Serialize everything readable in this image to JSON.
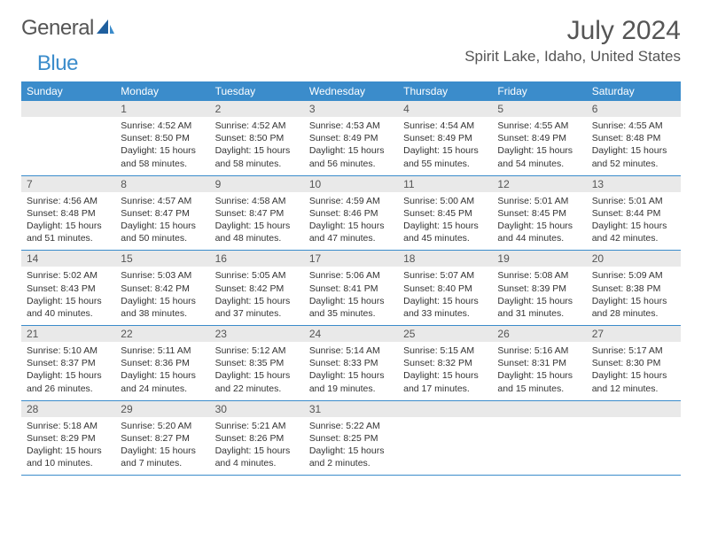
{
  "logo": {
    "text1": "General",
    "text2": "Blue"
  },
  "title": "July 2024",
  "location": "Spirit Lake, Idaho, United States",
  "colors": {
    "accent": "#3b8ccb",
    "day_bar_bg": "#e9e9e9",
    "text": "#333333",
    "header_text": "#555555",
    "background": "#ffffff"
  },
  "day_headers": [
    "Sunday",
    "Monday",
    "Tuesday",
    "Wednesday",
    "Thursday",
    "Friday",
    "Saturday"
  ],
  "weeks": [
    [
      {
        "n": "",
        "sr": "",
        "ss": "",
        "dl": ""
      },
      {
        "n": "1",
        "sr": "4:52 AM",
        "ss": "8:50 PM",
        "dl": "15 hours and 58 minutes."
      },
      {
        "n": "2",
        "sr": "4:52 AM",
        "ss": "8:50 PM",
        "dl": "15 hours and 58 minutes."
      },
      {
        "n": "3",
        "sr": "4:53 AM",
        "ss": "8:49 PM",
        "dl": "15 hours and 56 minutes."
      },
      {
        "n": "4",
        "sr": "4:54 AM",
        "ss": "8:49 PM",
        "dl": "15 hours and 55 minutes."
      },
      {
        "n": "5",
        "sr": "4:55 AM",
        "ss": "8:49 PM",
        "dl": "15 hours and 54 minutes."
      },
      {
        "n": "6",
        "sr": "4:55 AM",
        "ss": "8:48 PM",
        "dl": "15 hours and 52 minutes."
      }
    ],
    [
      {
        "n": "7",
        "sr": "4:56 AM",
        "ss": "8:48 PM",
        "dl": "15 hours and 51 minutes."
      },
      {
        "n": "8",
        "sr": "4:57 AM",
        "ss": "8:47 PM",
        "dl": "15 hours and 50 minutes."
      },
      {
        "n": "9",
        "sr": "4:58 AM",
        "ss": "8:47 PM",
        "dl": "15 hours and 48 minutes."
      },
      {
        "n": "10",
        "sr": "4:59 AM",
        "ss": "8:46 PM",
        "dl": "15 hours and 47 minutes."
      },
      {
        "n": "11",
        "sr": "5:00 AM",
        "ss": "8:45 PM",
        "dl": "15 hours and 45 minutes."
      },
      {
        "n": "12",
        "sr": "5:01 AM",
        "ss": "8:45 PM",
        "dl": "15 hours and 44 minutes."
      },
      {
        "n": "13",
        "sr": "5:01 AM",
        "ss": "8:44 PM",
        "dl": "15 hours and 42 minutes."
      }
    ],
    [
      {
        "n": "14",
        "sr": "5:02 AM",
        "ss": "8:43 PM",
        "dl": "15 hours and 40 minutes."
      },
      {
        "n": "15",
        "sr": "5:03 AM",
        "ss": "8:42 PM",
        "dl": "15 hours and 38 minutes."
      },
      {
        "n": "16",
        "sr": "5:05 AM",
        "ss": "8:42 PM",
        "dl": "15 hours and 37 minutes."
      },
      {
        "n": "17",
        "sr": "5:06 AM",
        "ss": "8:41 PM",
        "dl": "15 hours and 35 minutes."
      },
      {
        "n": "18",
        "sr": "5:07 AM",
        "ss": "8:40 PM",
        "dl": "15 hours and 33 minutes."
      },
      {
        "n": "19",
        "sr": "5:08 AM",
        "ss": "8:39 PM",
        "dl": "15 hours and 31 minutes."
      },
      {
        "n": "20",
        "sr": "5:09 AM",
        "ss": "8:38 PM",
        "dl": "15 hours and 28 minutes."
      }
    ],
    [
      {
        "n": "21",
        "sr": "5:10 AM",
        "ss": "8:37 PM",
        "dl": "15 hours and 26 minutes."
      },
      {
        "n": "22",
        "sr": "5:11 AM",
        "ss": "8:36 PM",
        "dl": "15 hours and 24 minutes."
      },
      {
        "n": "23",
        "sr": "5:12 AM",
        "ss": "8:35 PM",
        "dl": "15 hours and 22 minutes."
      },
      {
        "n": "24",
        "sr": "5:14 AM",
        "ss": "8:33 PM",
        "dl": "15 hours and 19 minutes."
      },
      {
        "n": "25",
        "sr": "5:15 AM",
        "ss": "8:32 PM",
        "dl": "15 hours and 17 minutes."
      },
      {
        "n": "26",
        "sr": "5:16 AM",
        "ss": "8:31 PM",
        "dl": "15 hours and 15 minutes."
      },
      {
        "n": "27",
        "sr": "5:17 AM",
        "ss": "8:30 PM",
        "dl": "15 hours and 12 minutes."
      }
    ],
    [
      {
        "n": "28",
        "sr": "5:18 AM",
        "ss": "8:29 PM",
        "dl": "15 hours and 10 minutes."
      },
      {
        "n": "29",
        "sr": "5:20 AM",
        "ss": "8:27 PM",
        "dl": "15 hours and 7 minutes."
      },
      {
        "n": "30",
        "sr": "5:21 AM",
        "ss": "8:26 PM",
        "dl": "15 hours and 4 minutes."
      },
      {
        "n": "31",
        "sr": "5:22 AM",
        "ss": "8:25 PM",
        "dl": "15 hours and 2 minutes."
      },
      {
        "n": "",
        "sr": "",
        "ss": "",
        "dl": ""
      },
      {
        "n": "",
        "sr": "",
        "ss": "",
        "dl": ""
      },
      {
        "n": "",
        "sr": "",
        "ss": "",
        "dl": ""
      }
    ]
  ],
  "labels": {
    "sunrise": "Sunrise: ",
    "sunset": "Sunset: ",
    "daylight": "Daylight: "
  }
}
